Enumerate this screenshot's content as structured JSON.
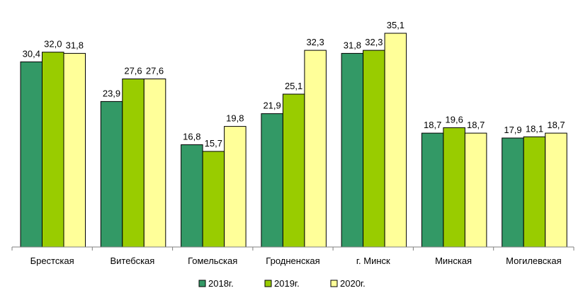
{
  "chart_data": {
    "type": "bar",
    "categories": [
      "Брестская",
      "Витебская",
      "Гомельская",
      "Гродненская",
      "г. Минск",
      "Минская",
      "Могилевская"
    ],
    "series": [
      {
        "name": "2018г.",
        "color": "#339966",
        "values": [
          30.4,
          23.9,
          16.8,
          21.9,
          31.8,
          18.7,
          17.9
        ],
        "labels": [
          "30,4",
          "23,9",
          "16,8",
          "21,9",
          "31,8",
          "18,7",
          "17,9"
        ]
      },
      {
        "name": "2019г.",
        "color": "#99CC00",
        "values": [
          32.0,
          27.6,
          15.7,
          25.1,
          32.3,
          19.6,
          18.1
        ],
        "labels": [
          "32,0",
          "27,6",
          "15,7",
          "25,1",
          "32,3",
          "19,6",
          "18,1"
        ]
      },
      {
        "name": "2020г.",
        "color": "#FFFF99",
        "values": [
          31.8,
          27.6,
          19.8,
          32.3,
          35.1,
          18.7,
          18.7
        ],
        "labels": [
          "31,8",
          "27,6",
          "19,8",
          "32,3",
          "35,1",
          "18,7",
          "18,7"
        ]
      }
    ],
    "ylim": [
      0,
      35.1
    ],
    "axis_color": "#808080",
    "bar_outline": "#000000",
    "legend_position": "bottom",
    "grid": false
  }
}
